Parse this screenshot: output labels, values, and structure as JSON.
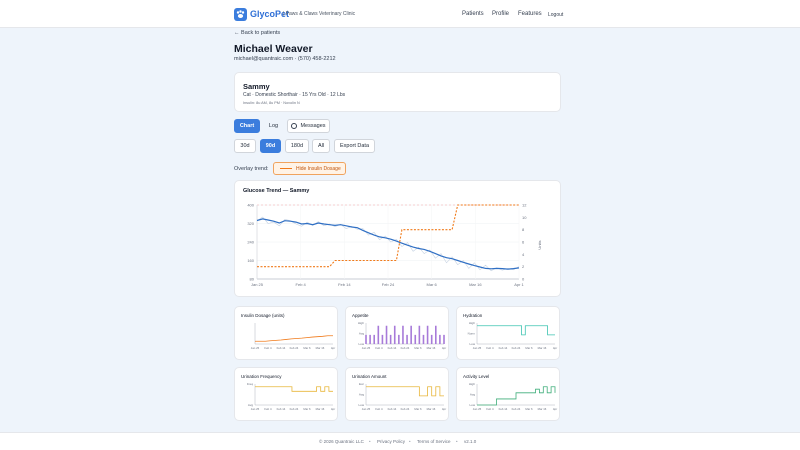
{
  "app": {
    "brand": "GlycoPet",
    "clinic": "| Paws & Claws Veterinary Clinic",
    "nav": [
      "Patients",
      "Profile",
      "Features",
      "Logout"
    ]
  },
  "back_link": "← Back to patients",
  "patient": {
    "name": "Michael Weaver",
    "contact": "michael@quantraic.com · (570) 458-2212"
  },
  "pet": {
    "name": "Sammy",
    "info": "Cat · Domestic Shorthair · 15 Yrs Old · 12 Lbs",
    "insulin": "Insulin: 8u AM, 8u PM · Novolin N"
  },
  "tabs": [
    "Chart",
    "Log",
    "Messages"
  ],
  "ranges": [
    "30d",
    "90d",
    "180d",
    "All"
  ],
  "export_label": "Export Data",
  "overlay": {
    "label": "Overlay trend:",
    "button": "Hide Insulin Dosage"
  },
  "colors": {
    "accent": "#3b7ddd",
    "glucose": "#2f6fc4",
    "insulin": "#f07a1a",
    "purple": "#a77ad9",
    "teal": "#3cc3b0",
    "yellow": "#e8b63a",
    "green": "#3fae7a"
  },
  "chart_data": [
    {
      "type": "line",
      "title": "Glucose Trend — Sammy",
      "xlabel": "",
      "ylabel": "",
      "y2label": "Units",
      "x_ticks": [
        "Jan 25",
        "Feb 4",
        "Feb 14",
        "Feb 24",
        "Mar 6",
        "Mar 16",
        "Apr 1"
      ],
      "ylim": [
        80,
        400
      ],
      "y_ticks": [
        80,
        160,
        240,
        320,
        400
      ],
      "y2lim": [
        0,
        12
      ],
      "y2_ticks": [
        0,
        2,
        4,
        6,
        8,
        10,
        12
      ],
      "reference_line": 400,
      "grid": true,
      "series": [
        {
          "values": [
            333,
            340,
            335,
            330,
            322,
            332,
            330,
            326,
            318,
            320,
            315,
            322,
            318,
            315,
            312,
            315,
            310,
            305,
            302,
            290,
            280,
            270,
            262,
            258,
            252,
            244,
            235,
            226,
            218,
            212,
            208,
            200,
            190,
            180,
            172,
            168,
            160,
            152,
            145,
            138,
            132,
            126,
            124,
            126,
            125,
            123,
            125,
            128
          ]
        },
        {
          "values": [
            332,
            348,
            320,
            326,
            310,
            338,
            332,
            318,
            308,
            326,
            312,
            328,
            310,
            318,
            306,
            316,
            298,
            308,
            295,
            298,
            270,
            282,
            250,
            266,
            240,
            252,
            220,
            238,
            200,
            218,
            190,
            206,
            170,
            190,
            150,
            176,
            142,
            160,
            126,
            150,
            120,
            140,
            116,
            128,
            118,
            126,
            120,
            134
          ]
        },
        {
          "values": [
            2,
            2,
            2,
            2,
            2,
            2,
            2,
            2,
            2,
            2,
            2,
            2,
            2,
            2,
            3,
            3,
            3,
            3,
            3,
            3,
            3,
            3,
            3,
            3,
            3,
            3,
            8,
            8,
            8,
            8,
            8,
            8,
            8,
            8,
            8,
            8,
            12,
            12,
            12,
            12,
            12,
            12,
            12,
            12,
            12,
            12,
            12,
            12
          ]
        }
      ]
    },
    {
      "type": "line",
      "title": "Insulin Dosage (units)",
      "x_ticks": [
        "Jan 25",
        "Feb 4",
        "Feb 14",
        "Feb 24",
        "Mar 6",
        "Mar 16",
        "Apr"
      ],
      "y_ticks": [],
      "series": [
        {
          "values": [
            0.15,
            0.15,
            0.15,
            0.18,
            0.2,
            0.22,
            0.25,
            0.28,
            0.3,
            0.32,
            0.35,
            0.38,
            0.4,
            0.42,
            0.45,
            0.45
          ]
        }
      ]
    },
    {
      "type": "bar",
      "title": "Appetite",
      "x_ticks": [
        "Jan 25",
        "Feb 4",
        "Feb 14",
        "Feb 24",
        "Mar 6",
        "Mar 16",
        "Apr"
      ],
      "y_ticks": [
        "High",
        "Avg",
        "Low"
      ],
      "series": [
        {
          "values": [
            1,
            1,
            1,
            2,
            1,
            2,
            1,
            2,
            1,
            2,
            1,
            2,
            1,
            2,
            1,
            2,
            1,
            2,
            1,
            1
          ]
        }
      ]
    },
    {
      "type": "line",
      "title": "Hydration",
      "x_ticks": [
        "Jan 25",
        "Feb 4",
        "Feb 14",
        "Feb 24",
        "Mar 6",
        "Mar 16",
        "Apr"
      ],
      "y_ticks": [
        "High",
        "Norm",
        "Low"
      ],
      "series": [
        {
          "values": [
            2,
            2,
            2,
            2,
            2,
            2,
            2,
            2,
            2,
            2,
            2,
            2,
            1,
            2,
            2,
            2,
            2,
            2,
            2,
            1,
            1,
            1
          ]
        }
      ]
    },
    {
      "type": "line",
      "title": "Urination Frequency",
      "x_ticks": [
        "Jan 25",
        "Feb 4",
        "Feb 14",
        "Feb 24",
        "Mar 6",
        "Mar 16",
        "Apr"
      ],
      "y_ticks": [
        "Freq",
        "Avg"
      ],
      "series": [
        {
          "values": [
            2,
            2,
            2,
            2,
            2,
            2,
            2,
            2,
            2,
            1.5,
            1.5,
            1.5,
            1.5,
            1.5,
            1.5,
            2,
            1.5,
            2,
            1.5,
            1.5
          ]
        }
      ]
    },
    {
      "type": "line",
      "title": "Urination Amount",
      "x_ticks": [
        "Jan 25",
        "Feb 4",
        "Feb 14",
        "Feb 24",
        "Mar 6",
        "Mar 16",
        "Apr"
      ],
      "y_ticks": [
        "Exc",
        "Avg",
        "Low"
      ],
      "series": [
        {
          "values": [
            2,
            2,
            2,
            2,
            2,
            2,
            2,
            2,
            2,
            2,
            2,
            2,
            2,
            1,
            1,
            2,
            1,
            2,
            1,
            1
          ]
        }
      ]
    },
    {
      "type": "line",
      "title": "Activity Level",
      "x_ticks": [
        "Jan 25",
        "Feb 4",
        "Feb 14",
        "Feb 24",
        "Mar 6",
        "Mar 16",
        "Apr"
      ],
      "y_ticks": [
        "High",
        "Avg",
        "Low"
      ],
      "series": [
        {
          "values": [
            0,
            0,
            0,
            0,
            0,
            0.5,
            0.5,
            0.5,
            0.5,
            0.5,
            1,
            1,
            1,
            1,
            1,
            1.3,
            1,
            1.5,
            1,
            1.5,
            1
          ]
        }
      ]
    }
  ],
  "footer": {
    "copyright": "© 2026 Quantraic LLC",
    "privacy": "Privacy Policy",
    "terms": "Terms of Service",
    "version": "v2.1.0"
  }
}
